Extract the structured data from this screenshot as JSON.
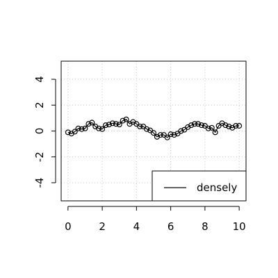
{
  "chart_data": {
    "type": "line",
    "title": "",
    "xlabel": "",
    "ylabel": "",
    "xlim": [
      -0.4,
      10.4
    ],
    "ylim": [
      -5.4,
      5.4
    ],
    "x_ticks": [
      {
        "value": 0,
        "label": "0"
      },
      {
        "value": 2,
        "label": "2"
      },
      {
        "value": 4,
        "label": "4"
      },
      {
        "value": 6,
        "label": "6"
      },
      {
        "value": 8,
        "label": "8"
      },
      {
        "value": 10,
        "label": "10"
      }
    ],
    "y_ticks": [
      {
        "value": -4,
        "label": "-4"
      },
      {
        "value": -2,
        "label": "-2"
      },
      {
        "value": 0,
        "label": "0"
      },
      {
        "value": 2,
        "label": "2"
      },
      {
        "value": 4,
        "label": "4"
      }
    ],
    "grid": true,
    "legend": {
      "position": "bottom-right",
      "entries": [
        {
          "label": "densely",
          "symbol": "line"
        }
      ]
    },
    "series": [
      {
        "name": "densely",
        "marker": "open-circle",
        "color": "#000000",
        "x": [
          0.0,
          0.2,
          0.4,
          0.6,
          0.8,
          1.0,
          1.2,
          1.4,
          1.6,
          1.8,
          2.0,
          2.2,
          2.4,
          2.6,
          2.8,
          3.0,
          3.2,
          3.4,
          3.6,
          3.8,
          4.0,
          4.2,
          4.4,
          4.6,
          4.8,
          5.0,
          5.2,
          5.4,
          5.6,
          5.8,
          6.0,
          6.2,
          6.4,
          6.6,
          6.8,
          7.0,
          7.2,
          7.4,
          7.6,
          7.8,
          8.0,
          8.2,
          8.4,
          8.6,
          8.8,
          9.0,
          9.2,
          9.4,
          9.6,
          9.8,
          10.0
        ],
        "y": [
          -0.1,
          -0.2,
          -0.05,
          0.2,
          0.15,
          0.2,
          0.55,
          0.65,
          0.35,
          0.2,
          0.15,
          0.45,
          0.5,
          0.6,
          0.55,
          0.5,
          0.8,
          0.9,
          0.55,
          0.7,
          0.55,
          0.35,
          0.35,
          0.15,
          0.05,
          -0.15,
          -0.45,
          -0.3,
          -0.3,
          -0.5,
          -0.25,
          -0.3,
          -0.2,
          0.0,
          0.1,
          0.3,
          0.45,
          0.55,
          0.55,
          0.45,
          0.4,
          0.2,
          0.25,
          -0.1,
          0.4,
          0.6,
          0.45,
          0.35,
          0.25,
          0.4,
          0.4
        ]
      }
    ]
  }
}
